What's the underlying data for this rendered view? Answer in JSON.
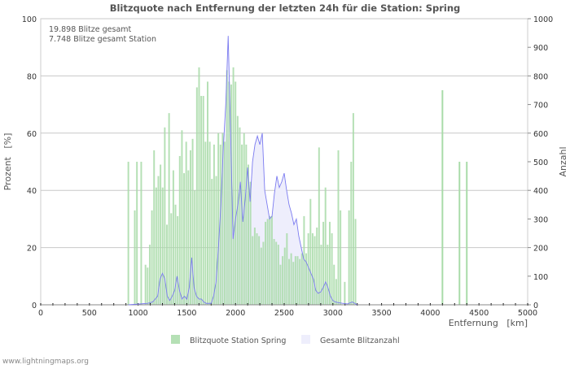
{
  "chart_data": {
    "type": "bar",
    "title": "Blitzquote nach Entfernung der letzten 24h für die Station: Spring",
    "annotations": [
      "19.898 Blitze gesamt",
      "7.748 Blitze gesamt Station"
    ],
    "xlabel": "Entfernung   [km]",
    "ylabel": "Prozent   [%]",
    "y2label": "Anzahl",
    "xlim": [
      0,
      5000
    ],
    "ylim": [
      0,
      100
    ],
    "y2lim": [
      0,
      1000
    ],
    "xticks": [
      "0",
      "500",
      "1000",
      "1500",
      "2000",
      "2500",
      "3000",
      "3500",
      "4000",
      "4500",
      "5000"
    ],
    "yticks": [
      "0",
      "20",
      "40",
      "60",
      "80",
      "100"
    ],
    "y2ticks": [
      "0",
      "100",
      "200",
      "300",
      "400",
      "500",
      "600",
      "700",
      "800",
      "900",
      "1000"
    ],
    "grid": true,
    "legend": {
      "placement": "bottom",
      "entries": [
        {
          "label": "Blitzquote Station Spring",
          "color": "#b5e0b5"
        },
        {
          "label": "Gesamte Blitzanzahl",
          "color": "#eeeefc"
        }
      ]
    },
    "series": [
      {
        "name": "Blitzquote Station Spring",
        "axis": "left",
        "kind": "bar",
        "color": "#a8dba8",
        "x_start": 900,
        "x_step": 22,
        "values": [
          50,
          0,
          0,
          33,
          50,
          0,
          50,
          0,
          14,
          13,
          21,
          33,
          54,
          41,
          45,
          49,
          41,
          62,
          28,
          67,
          32,
          47,
          35,
          31,
          52,
          61,
          46,
          57,
          47,
          54,
          58,
          40,
          76,
          83,
          73,
          73,
          57,
          78,
          57,
          44,
          56,
          45,
          60,
          56,
          60,
          57,
          82,
          78,
          77,
          83,
          78,
          66,
          62,
          56,
          60,
          56,
          49,
          43,
          24,
          27,
          25,
          24,
          20,
          22,
          29,
          30,
          31,
          31,
          23,
          22,
          21,
          14,
          17,
          20,
          25,
          16,
          18,
          15,
          17,
          17,
          16,
          18,
          31,
          18,
          25,
          37,
          25,
          24,
          27,
          55,
          21,
          29,
          41,
          21,
          29,
          25,
          14,
          9,
          54,
          33,
          0,
          8,
          0,
          33,
          50,
          67,
          30
        ],
        "extra": [
          {
            "x": 4125,
            "y": 75
          },
          {
            "x": 4300,
            "y": 50
          },
          {
            "x": 4375,
            "y": 50
          }
        ]
      },
      {
        "name": "Gesamte Blitzanzahl",
        "axis": "right",
        "kind": "area",
        "color": "#7b7bf0",
        "fill": "#eeeefc",
        "x": [
          900,
          1100,
          1150,
          1200,
          1225,
          1250,
          1275,
          1300,
          1325,
          1350,
          1375,
          1400,
          1425,
          1450,
          1475,
          1500,
          1525,
          1550,
          1575,
          1600,
          1625,
          1650,
          1675,
          1700,
          1725,
          1750,
          1775,
          1800,
          1825,
          1850,
          1875,
          1900,
          1925,
          1950,
          1975,
          2000,
          2025,
          2050,
          2075,
          2100,
          2125,
          2150,
          2175,
          2200,
          2225,
          2250,
          2275,
          2300,
          2325,
          2350,
          2375,
          2400,
          2425,
          2450,
          2475,
          2500,
          2525,
          2550,
          2575,
          2600,
          2625,
          2650,
          2675,
          2700,
          2725,
          2750,
          2775,
          2800,
          2825,
          2850,
          2875,
          2900,
          2925,
          2950,
          2975,
          3000,
          3025,
          3050,
          3100,
          3150,
          3200,
          3225,
          3250
        ],
        "y": [
          0,
          5,
          10,
          30,
          90,
          110,
          90,
          30,
          15,
          30,
          50,
          100,
          50,
          20,
          30,
          20,
          60,
          165,
          60,
          30,
          20,
          20,
          10,
          5,
          5,
          5,
          30,
          80,
          200,
          350,
          550,
          700,
          940,
          600,
          230,
          300,
          350,
          430,
          290,
          370,
          480,
          360,
          500,
          560,
          590,
          560,
          600,
          400,
          350,
          300,
          310,
          390,
          450,
          410,
          430,
          460,
          400,
          350,
          320,
          280,
          300,
          240,
          200,
          160,
          150,
          130,
          110,
          90,
          50,
          40,
          45,
          60,
          80,
          60,
          30,
          15,
          10,
          8,
          5,
          3,
          10,
          5,
          0
        ]
      }
    ]
  },
  "footer": "www.lightningmaps.org"
}
